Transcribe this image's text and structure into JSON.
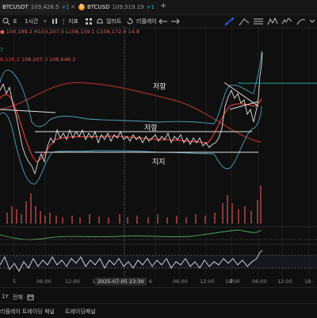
{
  "tabs": [
    {
      "symbol": "BTCUSDT",
      "price": "109,428.5",
      "extra": "+1"
    },
    {
      "symbol": "BTCUSD",
      "price": "109,519.19",
      "extra": "+1"
    }
  ],
  "tabbar": {
    "add_label": "+"
  },
  "toolbar": {
    "interval": "1시간",
    "indicators": "지표",
    "alerts": "얼러트",
    "replay": "리플레이"
  },
  "ohlc": {
    "open": "108,189.2",
    "high": "108,207.0",
    "low": "108,139.1",
    "close": "108,172.4",
    "change": "14.8"
  },
  "legends": {
    "line1": "7",
    "line2": "8,128.2",
    "line2_vals": "108,207.0 108,648.3"
  },
  "annotations": {
    "resistance_top": "저항",
    "resistance_mid": "저항",
    "support": "지지"
  },
  "time_axis": {
    "labels": [
      "5",
      "06:00",
      "12:00",
      "18:00",
      "6",
      "06:00",
      "12:00",
      "18:00",
      "7",
      "06:00",
      "12:00",
      "18:"
    ],
    "crosshair_date": "2025-07-05",
    "crosshair_time": "23:30"
  },
  "bottom_bar": {
    "period_1y": "1Y",
    "all": "전체",
    "panel_1": "리플레이 트레이딩 패널",
    "panel_2": "트레이딩패널"
  },
  "colors": {
    "accent": "#2962ff",
    "price_line": "#e0e0e0",
    "ma_red": "#e53935",
    "ma_brown": "#8b2a2a",
    "band": "#4fa3b8",
    "level": "#26a69a",
    "volume": "#b04646"
  },
  "icons": {
    "search": "search-icon",
    "alert": "bell-icon",
    "replay": "replay-icon",
    "tools": "drawing-tool-icons"
  }
}
